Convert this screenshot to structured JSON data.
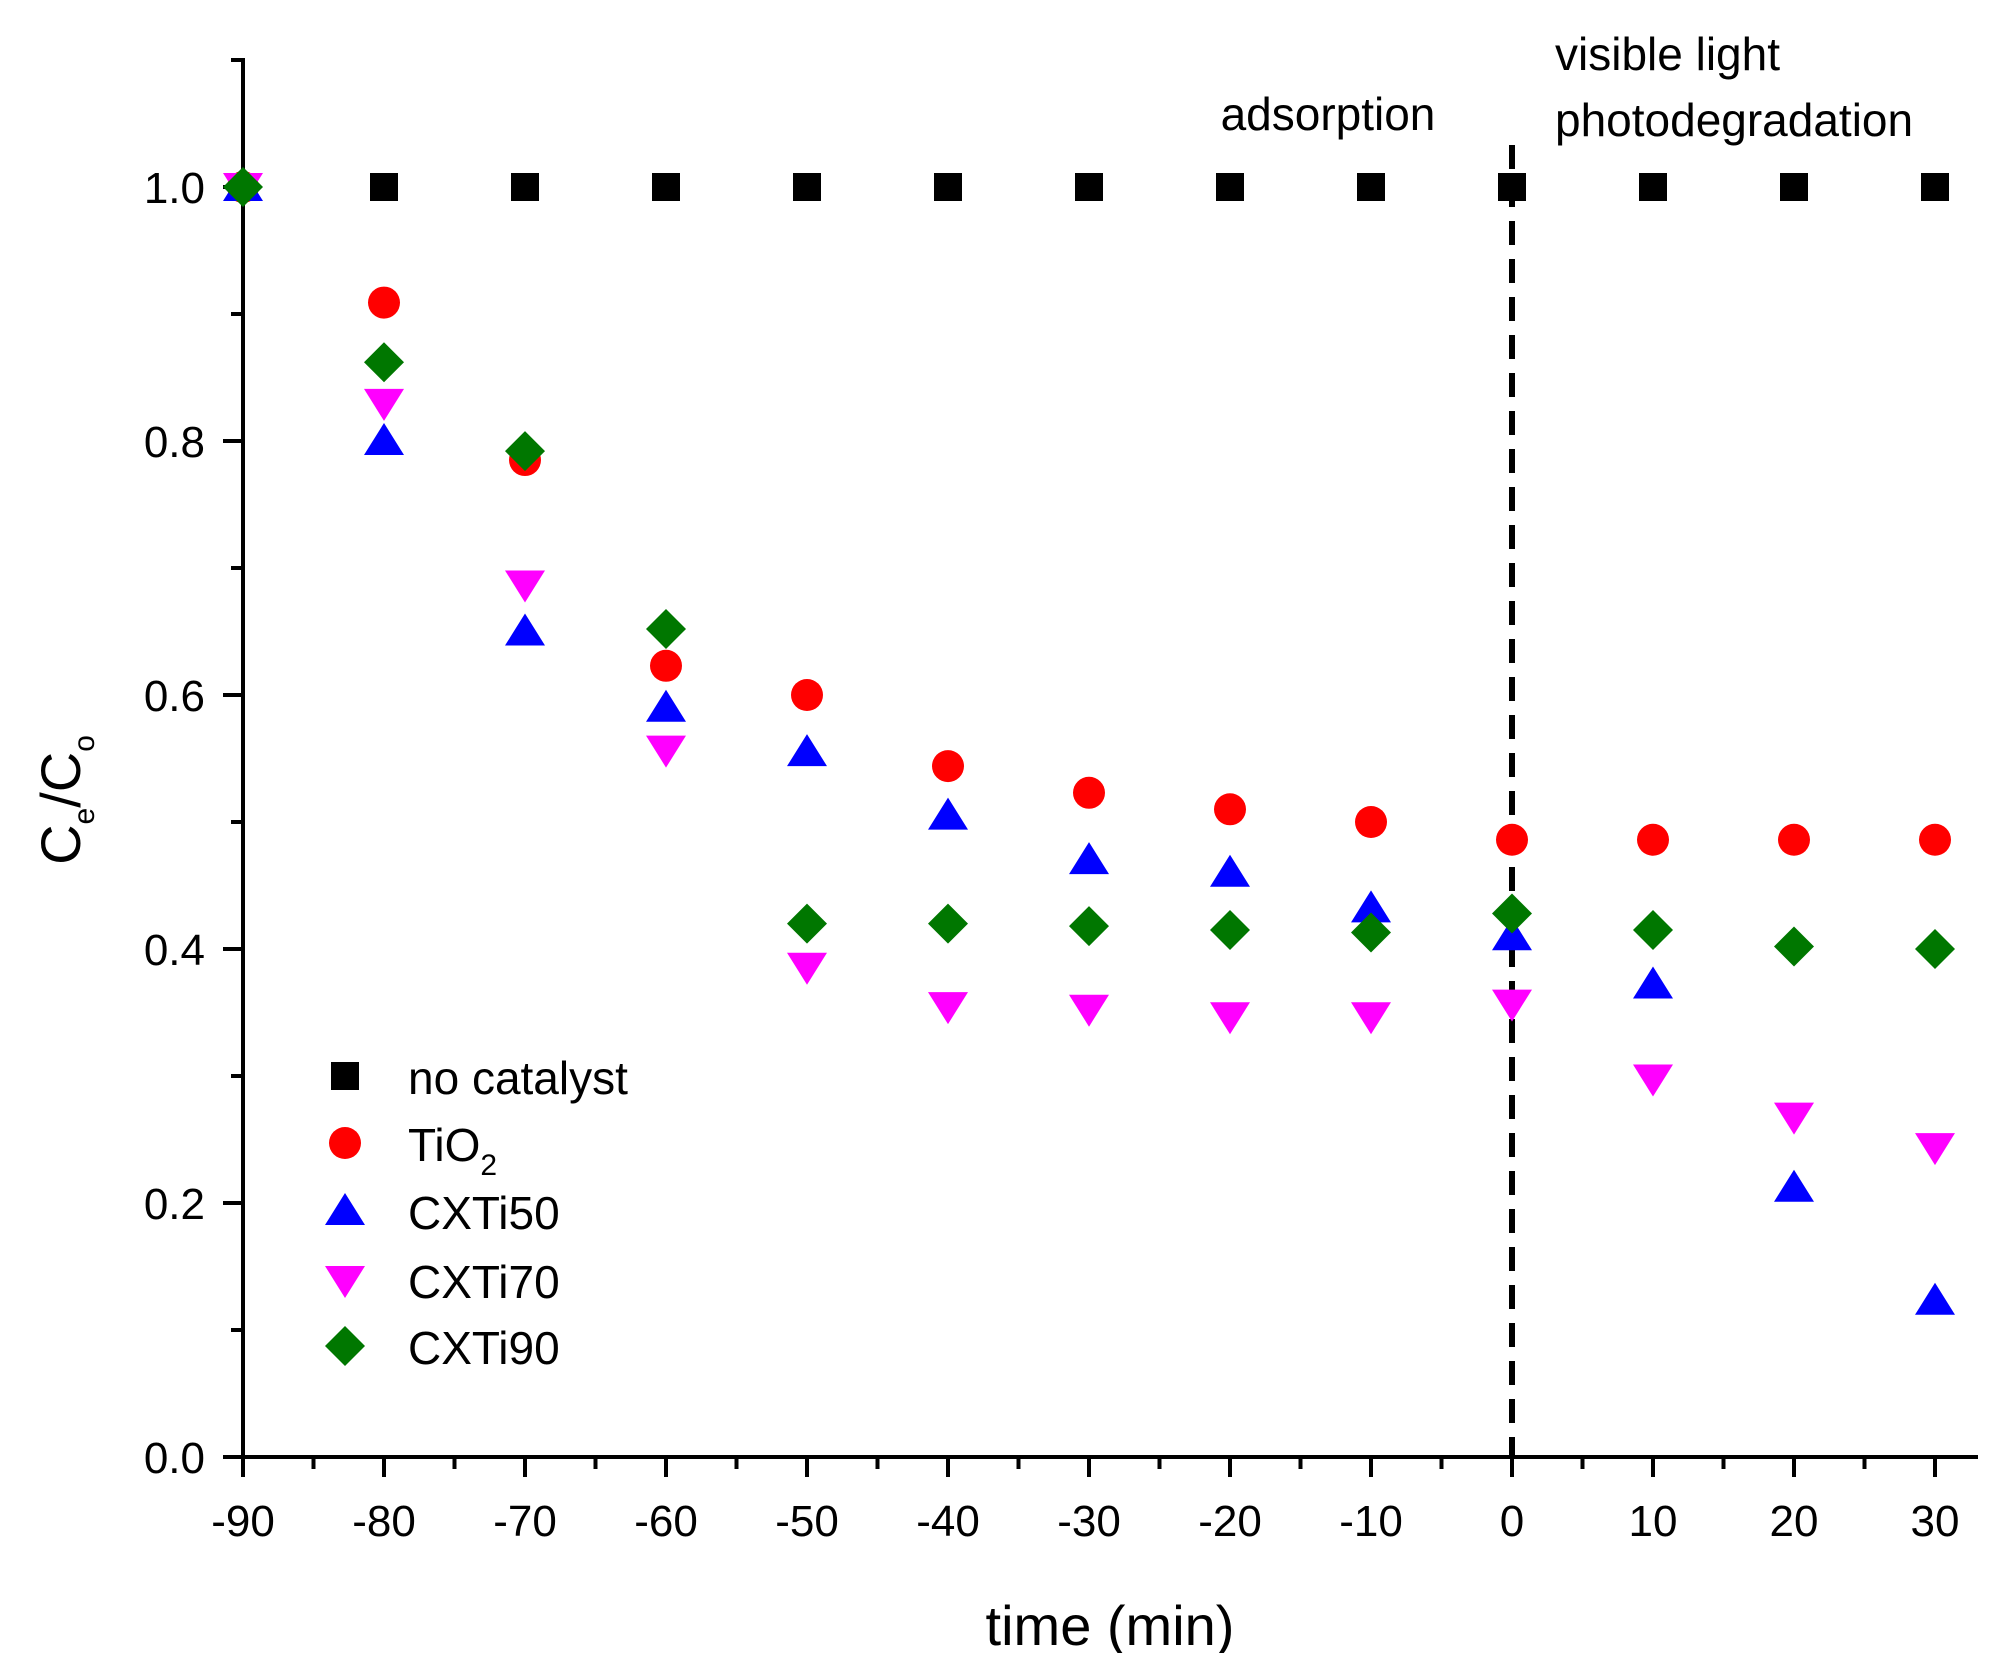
{
  "chart_data": {
    "type": "scatter",
    "title": "",
    "xlabel": "time (min)",
    "ylabel": {
      "main": "C",
      "sub1": "e",
      "sep": "/C",
      "sub2": "o"
    },
    "xlim": [
      -90,
      33
    ],
    "ylim": [
      0,
      1.1
    ],
    "xticks": [
      -90,
      -80,
      -70,
      -60,
      -50,
      -40,
      -30,
      -20,
      -10,
      0,
      10,
      20,
      30
    ],
    "yticks": [
      0.0,
      0.2,
      0.4,
      0.6,
      0.8,
      1.0
    ],
    "ytick_labels": [
      "0.0",
      "0.2",
      "0.4",
      "0.6",
      "0.8",
      "1.0"
    ],
    "grid": false,
    "legend_position": "bottom-left",
    "annotations": [
      {
        "id": "adsorption",
        "lines": [
          "adsorption"
        ]
      },
      {
        "id": "photodegradation",
        "lines": [
          "visible light",
          "photodegradation"
        ]
      }
    ],
    "vline": {
      "x": 0,
      "style": "dashed"
    },
    "x": [
      -90,
      -80,
      -70,
      -60,
      -50,
      -40,
      -30,
      -20,
      -10,
      0,
      10,
      20,
      30
    ],
    "series": [
      {
        "name": "no catalyst",
        "marker": "square",
        "color": "#000000",
        "values": [
          1.0,
          1.0,
          1.0,
          1.0,
          1.0,
          1.0,
          1.0,
          1.0,
          1.0,
          1.0,
          1.0,
          1.0,
          1.0
        ]
      },
      {
        "name": "TiO",
        "name_sub": "2",
        "marker": "circle",
        "color": "#ff0000",
        "values": [
          1.0,
          0.909,
          0.785,
          0.623,
          0.6,
          0.544,
          0.523,
          0.51,
          0.5,
          0.486,
          0.486,
          0.486,
          0.486
        ]
      },
      {
        "name": "CXTi50",
        "marker": "triangle-up",
        "color": "#0000ff",
        "values": [
          1.0,
          0.8,
          0.65,
          0.59,
          0.555,
          0.505,
          0.47,
          0.46,
          0.432,
          0.41,
          0.372,
          0.212,
          0.123
        ]
      },
      {
        "name": "CXTi70",
        "marker": "triangle-down",
        "color": "#ff00ff",
        "values": [
          1.0,
          0.83,
          0.687,
          0.557,
          0.386,
          0.355,
          0.353,
          0.347,
          0.347,
          0.357,
          0.298,
          0.268,
          0.244
        ]
      },
      {
        "name": "CXTi90",
        "marker": "diamond",
        "color": "#007700",
        "values": [
          1.0,
          0.862,
          0.792,
          0.652,
          0.42,
          0.42,
          0.418,
          0.415,
          0.413,
          0.428,
          0.415,
          0.402,
          0.4
        ]
      }
    ]
  }
}
